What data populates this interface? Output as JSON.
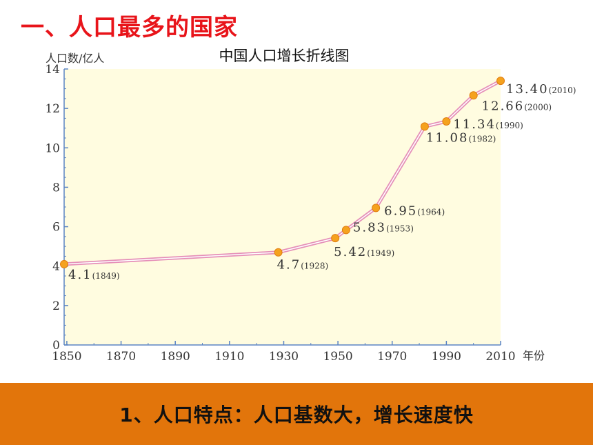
{
  "slide": {
    "heading": "一、人口最多的国家",
    "footer_text": "1、人口特点：人口基数大，增长速度快"
  },
  "colors": {
    "heading": "#e8141a",
    "plot_background": "#fffce0",
    "line": "#e58fb8",
    "line_inner": "#ffffff",
    "marker": "#f5a21e",
    "axis": "#5a84c4",
    "text": "#333333",
    "banner": "#e2750b"
  },
  "chart_data": {
    "type": "line",
    "title": "中国人口增长折线图",
    "ylabel": "人口数/亿人",
    "xlabel": "年份",
    "xlim": [
      1849,
      2010
    ],
    "ylim": [
      0,
      14
    ],
    "x_ticks": [
      1850,
      1870,
      1890,
      1910,
      1930,
      1950,
      1970,
      1990,
      2010
    ],
    "y_ticks": [
      0,
      2,
      4,
      6,
      8,
      10,
      12,
      14
    ],
    "grid": false,
    "series": [
      {
        "points": [
          {
            "x": 1849,
            "y": 4.1,
            "label": "4.1",
            "year_label": "(1849)"
          },
          {
            "x": 1928,
            "y": 4.7,
            "label": "4.7",
            "year_label": "(1928)"
          },
          {
            "x": 1949,
            "y": 5.42,
            "label": "5.42",
            "year_label": "(1949)"
          },
          {
            "x": 1953,
            "y": 5.83,
            "label": "5.83",
            "year_label": "(1953)"
          },
          {
            "x": 1964,
            "y": 6.95,
            "label": "6.95",
            "year_label": "(1964)"
          },
          {
            "x": 1982,
            "y": 11.08,
            "label": "11.08",
            "year_label": "(1982)"
          },
          {
            "x": 1990,
            "y": 11.34,
            "label": "11.34",
            "year_label": "(1990)"
          },
          {
            "x": 2000,
            "y": 12.66,
            "label": "12.66",
            "year_label": "(2000)"
          },
          {
            "x": 2010,
            "y": 13.4,
            "label": "13.40",
            "year_label": "(2010)"
          }
        ]
      }
    ]
  }
}
